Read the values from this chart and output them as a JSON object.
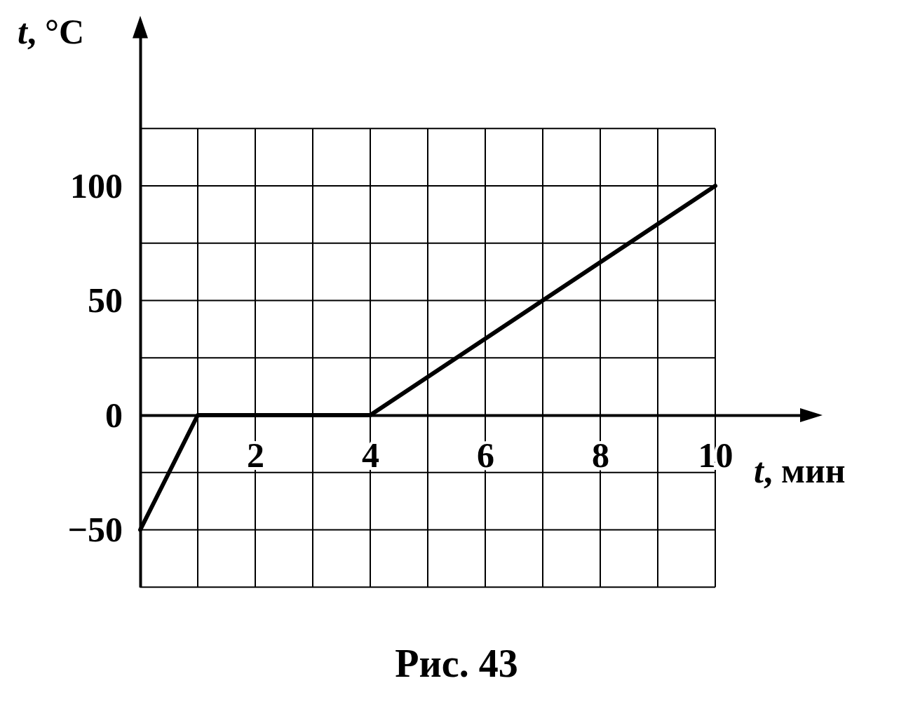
{
  "chart_data": {
    "type": "line",
    "xlabel": "t, мин",
    "ylabel": "t, °C",
    "annotations": [
      "Рис. 43"
    ],
    "x": [
      0,
      1,
      4,
      10
    ],
    "series": [
      {
        "color": "#000000",
        "values": [
          -50,
          0,
          0,
          100
        ]
      }
    ],
    "xlim": [
      0,
      11.5
    ],
    "ylim": [
      -75,
      165
    ],
    "xticks": [
      {
        "value": 0,
        "label": null
      },
      {
        "value": 1,
        "label": null
      },
      2,
      {
        "value": 3,
        "label": null
      },
      4,
      {
        "value": 5,
        "label": null
      },
      6,
      {
        "value": 7,
        "label": null
      },
      8,
      {
        "value": 9,
        "label": null
      },
      10
    ],
    "yticks": [
      {
        "value": -75,
        "label": null
      },
      -50,
      {
        "value": -25,
        "label": null
      },
      0,
      {
        "value": 25,
        "label": null
      },
      50,
      {
        "value": 75,
        "label": null
      },
      100,
      {
        "value": 125,
        "label": null
      }
    ],
    "grid": true,
    "marker": "none",
    "line_style": "solid"
  }
}
